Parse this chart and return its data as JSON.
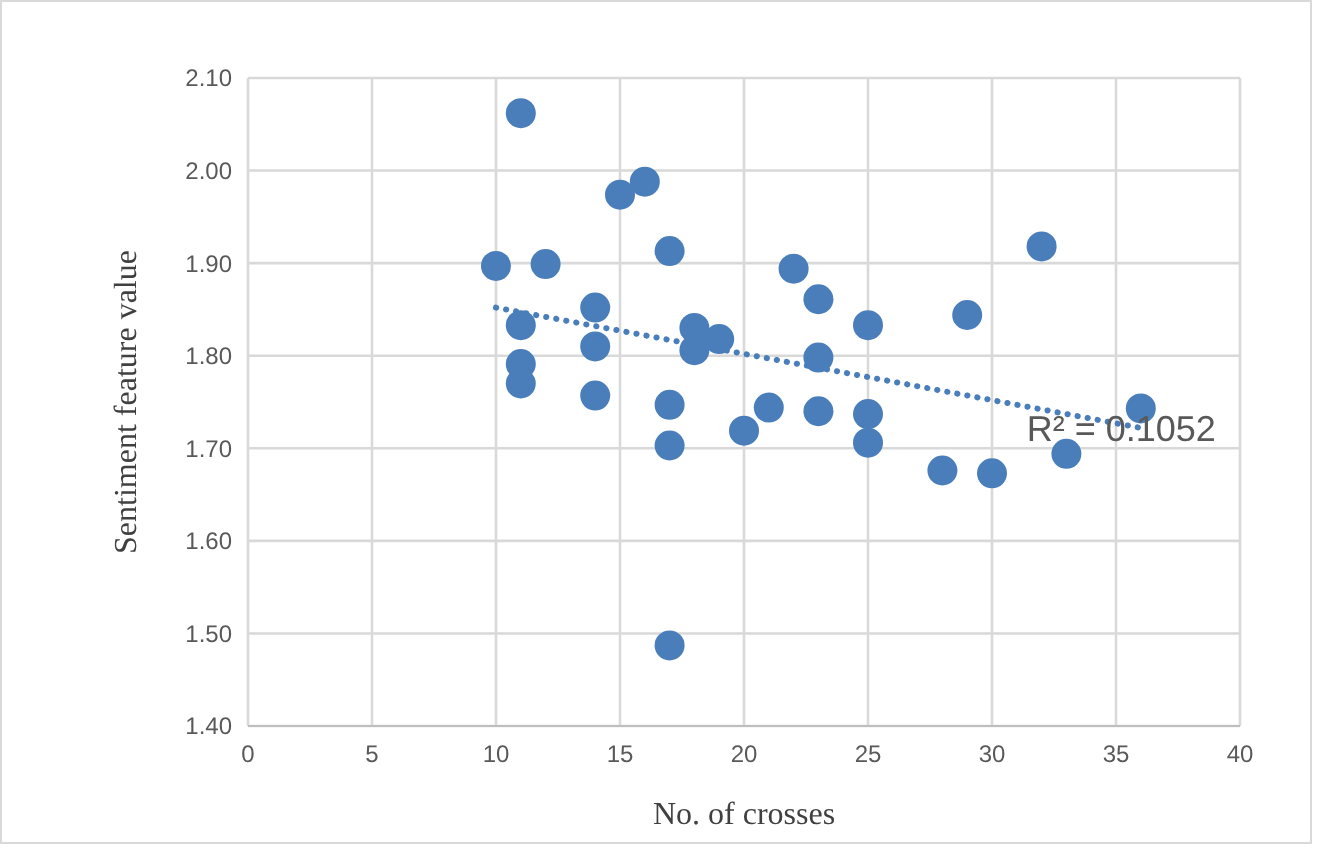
{
  "chart_data": {
    "type": "scatter",
    "xlabel": "No. of crosses",
    "ylabel": "Sentiment feature value",
    "xlim": [
      0,
      40
    ],
    "xticks": [
      0,
      5,
      10,
      15,
      20,
      25,
      30,
      35,
      40
    ],
    "ylim": [
      1.4,
      2.1
    ],
    "yticks": [
      {
        "value": 1.4,
        "label": "1.40"
      },
      {
        "value": 1.5,
        "label": "1.50"
      },
      {
        "value": 1.6,
        "label": "1.60"
      },
      {
        "value": 1.7,
        "label": "1.70"
      },
      {
        "value": 1.8,
        "label": "1.80"
      },
      {
        "value": 1.9,
        "label": "1.90"
      },
      {
        "value": 2.0,
        "label": "2.00"
      },
      {
        "value": 2.1,
        "label": "2.10"
      }
    ],
    "grid": true,
    "marker": "circle",
    "annotations": [
      "R² = 0.1052"
    ],
    "series": [
      {
        "color": "#4a7ebb",
        "x": [
          10,
          11,
          11,
          11,
          11,
          12,
          14,
          14,
          14,
          15,
          16,
          17,
          17,
          17,
          17,
          18,
          18,
          19,
          20,
          21,
          22,
          23,
          23,
          23,
          25,
          25,
          25,
          28,
          29,
          30,
          32,
          33,
          36
        ],
        "values": [
          1.897,
          2.062,
          1.833,
          1.791,
          1.77,
          1.899,
          1.852,
          1.81,
          1.757,
          1.974,
          1.988,
          1.913,
          1.747,
          1.703,
          1.487,
          1.83,
          1.806,
          1.818,
          1.719,
          1.744,
          1.894,
          1.861,
          1.798,
          1.74,
          1.833,
          1.737,
          1.706,
          1.676,
          1.844,
          1.673,
          1.918,
          1.694,
          1.743
        ]
      },
      {
        "type": "line",
        "color": "#4a7ebb",
        "line_style": "dotted",
        "marker": "none",
        "x": [
          10,
          36
        ],
        "values": [
          1.852,
          1.722
        ]
      }
    ]
  }
}
